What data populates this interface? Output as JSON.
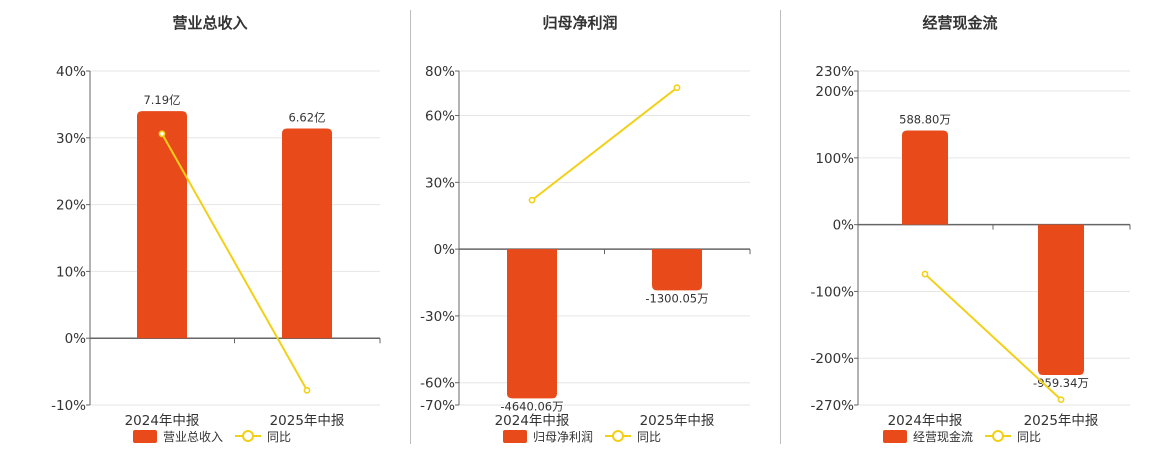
{
  "colors": {
    "bar": "#E84A1A",
    "line": "#F2D018",
    "grid": "#e6e6e6",
    "axis": "#666666"
  },
  "chart_data": [
    {
      "type": "bar",
      "title": "营业总收入",
      "categories": [
        "2024年中报",
        "2025年中报"
      ],
      "y_ticks": [
        "40%",
        "30%",
        "20%",
        "10%",
        "0%",
        "-10%"
      ],
      "ylim": [
        -10,
        40
      ],
      "series": [
        {
          "name": "营业总收入",
          "kind": "bar",
          "values": [
            34.0,
            31.4
          ],
          "labels": [
            "7.19亿",
            "6.62亿"
          ]
        },
        {
          "name": "同比",
          "kind": "line",
          "values": [
            30.6,
            -7.8
          ]
        }
      ],
      "legend_position": "bottom"
    },
    {
      "type": "bar",
      "title": "归母净利润",
      "categories": [
        "2024年中报",
        "2025年中报"
      ],
      "y_ticks": [
        "80%",
        "60%",
        "30%",
        "0%",
        "-30%",
        "-60%",
        "-70%"
      ],
      "ylim": [
        -70,
        80
      ],
      "series": [
        {
          "name": "归母净利润",
          "kind": "bar",
          "values": [
            -67,
            -18.5
          ],
          "labels": [
            "-4640.06万",
            "-1300.05万"
          ]
        },
        {
          "name": "同比",
          "kind": "line",
          "values": [
            22,
            72.5
          ]
        }
      ],
      "legend_position": "bottom"
    },
    {
      "type": "bar",
      "title": "经营现金流",
      "categories": [
        "2024年中报",
        "2025年中报"
      ],
      "y_ticks": [
        "230%",
        "200%",
        "100%",
        "0%",
        "-100%",
        "-200%",
        "-270%"
      ],
      "ylim": [
        -270,
        230
      ],
      "series": [
        {
          "name": "经营现金流",
          "kind": "bar",
          "values": [
            141,
            -225
          ],
          "labels": [
            "588.80万",
            "-959.34万"
          ]
        },
        {
          "name": "同比",
          "kind": "line",
          "values": [
            -74,
            -262
          ]
        }
      ],
      "legend_position": "bottom"
    }
  ]
}
